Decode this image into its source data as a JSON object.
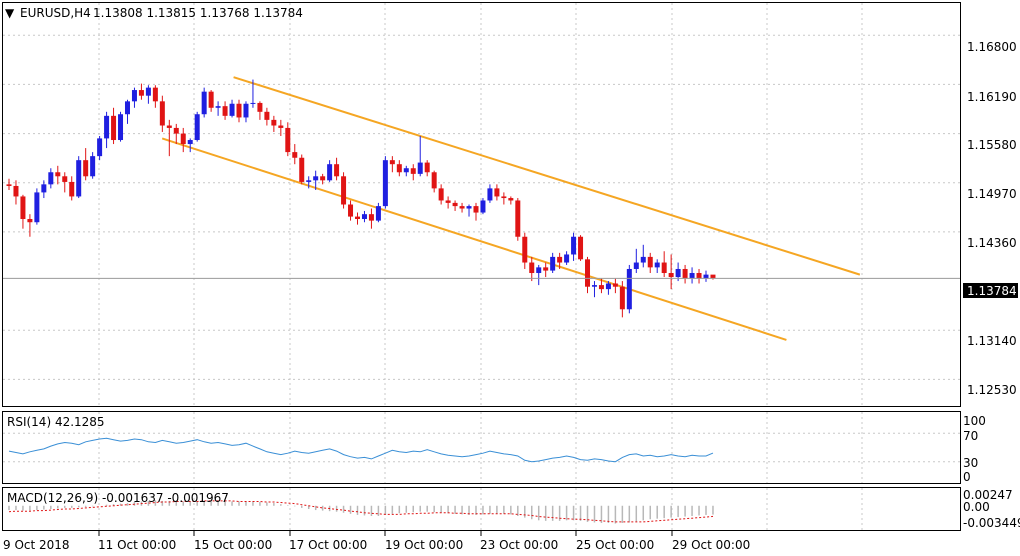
{
  "header": {
    "symbol": "EURUSD,H4",
    "ohlc": "1.13808 1.13815 1.13768 1.13784"
  },
  "price_badge": "1.13784",
  "colors": {
    "bull": "#1f1fe0",
    "bear": "#e01414",
    "channel": "#f5a623",
    "rsi": "#3a8fd6",
    "macd_hist": "#b8b8b8",
    "macd_signal": "#e01414",
    "grid": "#c8c8c8",
    "badge_bg": "#000000"
  },
  "chart_data": [
    {
      "type": "candlestick",
      "panel": "price",
      "title": "EURUSD,H4",
      "ylim": [
        1.122,
        1.172
      ],
      "y_ticks": [
        "1.16800",
        "1.16190",
        "1.15580",
        "1.14970",
        "1.14360",
        "1.13140",
        "1.12530"
      ],
      "x_ticks": [
        "9 Oct 2018",
        "11 Oct 00:00",
        "15 Oct 00:00",
        "17 Oct 00:00",
        "19 Oct 00:00",
        "23 Oct 00:00",
        "25 Oct 00:00",
        "29 Oct 00:00"
      ],
      "last_price": 1.13784,
      "candles": [
        [
          1.1495,
          1.1502,
          1.1488,
          1.1493
        ],
        [
          1.1493,
          1.15,
          1.147,
          1.148
        ],
        [
          1.148,
          1.1482,
          1.144,
          1.1452
        ],
        [
          1.1452,
          1.1458,
          1.143,
          1.1448
        ],
        [
          1.1448,
          1.149,
          1.1445,
          1.1485
        ],
        [
          1.1485,
          1.15,
          1.1478,
          1.1495
        ],
        [
          1.1495,
          1.1515,
          1.149,
          1.151
        ],
        [
          1.151,
          1.1518,
          1.1495,
          1.1505
        ],
        [
          1.1505,
          1.151,
          1.1485,
          1.1498
        ],
        [
          1.1498,
          1.1505,
          1.1475,
          1.148
        ],
        [
          1.148,
          1.153,
          1.1478,
          1.1525
        ],
        [
          1.1525,
          1.154,
          1.15,
          1.1505
        ],
        [
          1.1505,
          1.1535,
          1.1502,
          1.153
        ],
        [
          1.153,
          1.1555,
          1.1525,
          1.1552
        ],
        [
          1.1552,
          1.1585,
          1.154,
          1.158
        ],
        [
          1.158,
          1.159,
          1.1545,
          1.155
        ],
        [
          1.155,
          1.1585,
          1.1548,
          1.1582
        ],
        [
          1.1582,
          1.16,
          1.157,
          1.1598
        ],
        [
          1.1598,
          1.1615,
          1.159,
          1.1612
        ],
        [
          1.1612,
          1.162,
          1.16,
          1.1605
        ],
        [
          1.1605,
          1.1618,
          1.1595,
          1.1615
        ],
        [
          1.1615,
          1.1618,
          1.159,
          1.1598
        ],
        [
          1.1598,
          1.1605,
          1.156,
          1.1568
        ],
        [
          1.1568,
          1.1575,
          1.153,
          1.1565
        ],
        [
          1.1565,
          1.157,
          1.1545,
          1.1558
        ],
        [
          1.1558,
          1.1565,
          1.1535,
          1.1545
        ],
        [
          1.1545,
          1.1552,
          1.1535,
          1.155
        ],
        [
          1.155,
          1.1585,
          1.1548,
          1.1582
        ],
        [
          1.1582,
          1.1615,
          1.1578,
          1.161
        ],
        [
          1.161,
          1.1612,
          1.1585,
          1.159
        ],
        [
          1.159,
          1.1598,
          1.158,
          1.1592
        ],
        [
          1.1592,
          1.1598,
          1.1575,
          1.158
        ],
        [
          1.158,
          1.16,
          1.1578,
          1.1595
        ],
        [
          1.1595,
          1.16,
          1.1572,
          1.1578
        ],
        [
          1.1578,
          1.1598,
          1.1572,
          1.1595
        ],
        [
          1.1595,
          1.1625,
          1.159,
          1.1596
        ],
        [
          1.1596,
          1.1598,
          1.1575,
          1.1585
        ],
        [
          1.1585,
          1.159,
          1.1568,
          1.1575
        ],
        [
          1.1575,
          1.158,
          1.156,
          1.1568
        ],
        [
          1.1568,
          1.1575,
          1.1555,
          1.1565
        ],
        [
          1.1565,
          1.1572,
          1.153,
          1.1535
        ],
        [
          1.1535,
          1.1545,
          1.152,
          1.1528
        ],
        [
          1.1528,
          1.1532,
          1.1495,
          1.1498
        ],
        [
          1.1498,
          1.1505,
          1.149,
          1.15
        ],
        [
          1.15,
          1.1512,
          1.1488,
          1.1505
        ],
        [
          1.1505,
          1.1508,
          1.1495,
          1.15
        ],
        [
          1.15,
          1.1525,
          1.1498,
          1.152
        ],
        [
          1.152,
          1.1528,
          1.15,
          1.1505
        ],
        [
          1.1505,
          1.151,
          1.1465,
          1.147
        ],
        [
          1.147,
          1.1475,
          1.145,
          1.1455
        ],
        [
          1.1455,
          1.146,
          1.1445,
          1.1452
        ],
        [
          1.1452,
          1.1462,
          1.1448,
          1.1458
        ],
        [
          1.1458,
          1.1465,
          1.144,
          1.145
        ],
        [
          1.145,
          1.1472,
          1.1448,
          1.1468
        ],
        [
          1.1468,
          1.153,
          1.1465,
          1.1525
        ],
        [
          1.1525,
          1.153,
          1.151,
          1.152
        ],
        [
          1.152,
          1.1525,
          1.1505,
          1.151
        ],
        [
          1.151,
          1.1518,
          1.1505,
          1.1515
        ],
        [
          1.1515,
          1.152,
          1.15,
          1.1508
        ],
        [
          1.1508,
          1.1555,
          1.1505,
          1.1522
        ],
        [
          1.1522,
          1.1525,
          1.1505,
          1.151
        ],
        [
          1.151,
          1.1512,
          1.1485,
          1.149
        ],
        [
          1.149,
          1.1495,
          1.147,
          1.1475
        ],
        [
          1.1475,
          1.148,
          1.1465,
          1.1472
        ],
        [
          1.1472,
          1.1475,
          1.1462,
          1.1468
        ],
        [
          1.1468,
          1.1472,
          1.146,
          1.1465
        ],
        [
          1.1465,
          1.147,
          1.1455,
          1.1468
        ],
        [
          1.1468,
          1.1472,
          1.145,
          1.146
        ],
        [
          1.146,
          1.1478,
          1.1458,
          1.1475
        ],
        [
          1.1475,
          1.1495,
          1.1472,
          1.149
        ],
        [
          1.149,
          1.1495,
          1.1475,
          1.148
        ],
        [
          1.148,
          1.1485,
          1.147,
          1.1478
        ],
        [
          1.1478,
          1.148,
          1.147,
          1.1475
        ],
        [
          1.1475,
          1.1478,
          1.1425,
          1.143
        ],
        [
          1.143,
          1.1435,
          1.139,
          1.1398
        ],
        [
          1.1398,
          1.1405,
          1.1375,
          1.1385
        ],
        [
          1.1385,
          1.1395,
          1.137,
          1.1392
        ],
        [
          1.1392,
          1.1398,
          1.138,
          1.1388
        ],
        [
          1.1388,
          1.141,
          1.1385,
          1.1405
        ],
        [
          1.1405,
          1.141,
          1.139,
          1.1398
        ],
        [
          1.1398,
          1.1412,
          1.1395,
          1.1408
        ],
        [
          1.1408,
          1.1435,
          1.14,
          1.143
        ],
        [
          1.143,
          1.1432,
          1.14,
          1.1402
        ],
        [
          1.1402,
          1.1405,
          1.136,
          1.1368
        ],
        [
          1.1368,
          1.1375,
          1.1355,
          1.137
        ],
        [
          1.137,
          1.1378,
          1.136,
          1.1365
        ],
        [
          1.1365,
          1.1375,
          1.1358,
          1.1372
        ],
        [
          1.1372,
          1.1378,
          1.136,
          1.1368
        ],
        [
          1.1368,
          1.1375,
          1.133,
          1.134
        ],
        [
          1.134,
          1.1395,
          1.1335,
          1.139
        ],
        [
          1.139,
          1.1415,
          1.1385,
          1.1398
        ],
        [
          1.1398,
          1.142,
          1.1392,
          1.1405
        ],
        [
          1.1405,
          1.141,
          1.1385,
          1.1392
        ],
        [
          1.1392,
          1.1402,
          1.1385,
          1.1398
        ],
        [
          1.1398,
          1.1412,
          1.138,
          1.1385
        ],
        [
          1.1385,
          1.1408,
          1.1365,
          1.138
        ],
        [
          1.138,
          1.1398,
          1.1375,
          1.139
        ],
        [
          1.139,
          1.1395,
          1.1372,
          1.1378
        ],
        [
          1.1378,
          1.1392,
          1.1372,
          1.1385
        ],
        [
          1.1385,
          1.139,
          1.1372,
          1.1378
        ],
        [
          1.1378,
          1.1388,
          1.1374,
          1.1383
        ],
        [
          1.1383,
          1.13815,
          1.13768,
          1.13784
        ]
      ],
      "channel": [
        [
          [
            0.229,
            1.1628
          ],
          [
            0.843,
            1.1383
          ]
        ],
        [
          [
            0.159,
            1.1552
          ],
          [
            0.771,
            1.1302
          ]
        ]
      ]
    },
    {
      "type": "line",
      "panel": "rsi",
      "title": "RSI(14) 42.1285",
      "ylim": [
        0,
        100
      ],
      "y_ticks": [
        "100",
        "70",
        "30",
        "0"
      ],
      "values": [
        45,
        43,
        41,
        44,
        46,
        48,
        52,
        55,
        57,
        56,
        54,
        58,
        60,
        62,
        63,
        61,
        59,
        60,
        62,
        61,
        58,
        57,
        60,
        58,
        56,
        57,
        59,
        61,
        58,
        56,
        57,
        55,
        53,
        54,
        56,
        52,
        48,
        44,
        42,
        40,
        42,
        45,
        43,
        42,
        44,
        46,
        48,
        45,
        40,
        37,
        35,
        36,
        34,
        38,
        42,
        46,
        44,
        43,
        45,
        44,
        47,
        44,
        41,
        39,
        38,
        37,
        38,
        40,
        42,
        45,
        43,
        41,
        40,
        38,
        32,
        30,
        31,
        33,
        35,
        36,
        38,
        36,
        33,
        32,
        34,
        33,
        31,
        30,
        36,
        40,
        41,
        38,
        39,
        37,
        38,
        40,
        38,
        37,
        39,
        38,
        38,
        42.1285
      ]
    },
    {
      "type": "bar+line",
      "panel": "macd",
      "title": "MACD(12,26,9) -0.001637 -0.001967",
      "ylim": [
        -0.0045,
        0.0033
      ],
      "y_ticks": [
        "0.00247",
        "0.00",
        "-0.003449"
      ],
      "histogram": [
        -0.0008,
        -0.0008,
        -0.0009,
        -0.0009,
        -0.0008,
        -0.0007,
        -0.0006,
        -0.0005,
        -0.0004,
        -0.0004,
        -0.0003,
        -0.0002,
        -0.0001,
        0.0,
        0.0002,
        0.0003,
        0.0004,
        0.0005,
        0.0007,
        0.0008,
        0.0009,
        0.001,
        0.0009,
        0.0009,
        0.0008,
        0.0008,
        0.0008,
        0.0009,
        0.001,
        0.001,
        0.0009,
        0.0009,
        0.0008,
        0.0008,
        0.0008,
        0.0008,
        0.0007,
        0.0006,
        0.0005,
        0.0003,
        0.0001,
        -0.0001,
        -0.0004,
        -0.0006,
        -0.0008,
        -0.0009,
        -0.001,
        -0.0011,
        -0.0013,
        -0.0015,
        -0.0017,
        -0.0018,
        -0.0019,
        -0.0019,
        -0.0017,
        -0.0015,
        -0.0014,
        -0.0013,
        -0.0012,
        -0.0011,
        -0.0011,
        -0.0012,
        -0.0013,
        -0.0014,
        -0.0015,
        -0.0016,
        -0.0017,
        -0.0017,
        -0.0016,
        -0.0015,
        -0.0015,
        -0.0015,
        -0.0016,
        -0.0019,
        -0.0022,
        -0.0025,
        -0.0027,
        -0.0028,
        -0.0028,
        -0.0028,
        -0.0027,
        -0.0027,
        -0.0028,
        -0.003,
        -0.0031,
        -0.0032,
        -0.0032,
        -0.0033,
        -0.0032,
        -0.0031,
        -0.0029,
        -0.0027,
        -0.0025,
        -0.0024,
        -0.0023,
        -0.0022,
        -0.0021,
        -0.002,
        -0.0019,
        -0.0018,
        -0.0017,
        -0.001637
      ],
      "signal": [
        -0.0011,
        -0.001,
        -0.001,
        -0.001,
        -0.0009,
        -0.0009,
        -0.0008,
        -0.0007,
        -0.0006,
        -0.0006,
        -0.0005,
        -0.0004,
        -0.0003,
        -0.0002,
        -0.0001,
        0.0,
        0.0001,
        0.0002,
        0.0003,
        0.0004,
        0.0005,
        0.0006,
        0.0007,
        0.0007,
        0.0008,
        0.0008,
        0.0008,
        0.0008,
        0.0009,
        0.0009,
        0.0009,
        0.0009,
        0.0009,
        0.0008,
        0.0008,
        0.0008,
        0.0008,
        0.0007,
        0.0007,
        0.0006,
        0.0005,
        0.0004,
        0.0002,
        0.0,
        -0.0002,
        -0.0004,
        -0.0005,
        -0.0007,
        -0.0008,
        -0.001,
        -0.0011,
        -0.0013,
        -0.0014,
        -0.0015,
        -0.0016,
        -0.0016,
        -0.0016,
        -0.0015,
        -0.0015,
        -0.0014,
        -0.0014,
        -0.0013,
        -0.0013,
        -0.0013,
        -0.0014,
        -0.0014,
        -0.0015,
        -0.0015,
        -0.0015,
        -0.0015,
        -0.0015,
        -0.0015,
        -0.0015,
        -0.0016,
        -0.0017,
        -0.0018,
        -0.002,
        -0.0021,
        -0.0022,
        -0.0023,
        -0.0024,
        -0.0025,
        -0.0025,
        -0.0026,
        -0.0027,
        -0.0028,
        -0.0029,
        -0.003,
        -0.003,
        -0.003,
        -0.003,
        -0.003,
        -0.0029,
        -0.0028,
        -0.0027,
        -0.0026,
        -0.0025,
        -0.0024,
        -0.0023,
        -0.0022,
        -0.0021,
        -0.001967
      ]
    }
  ]
}
